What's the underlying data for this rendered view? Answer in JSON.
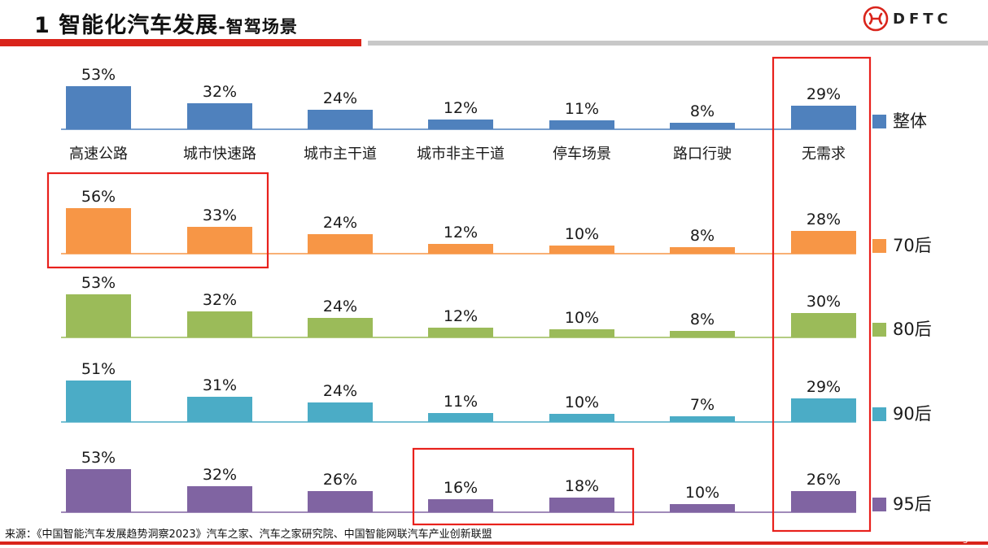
{
  "header": {
    "title_main": "1 智能化汽车发展",
    "title_sub": "-智驾场景",
    "logo_text": "DFTC"
  },
  "footer": {
    "source": "来源：《中国智能汽车发展趋势洞察2023》汽车之家、汽车之家研究院、中国智能网联汽车产业创新联盟",
    "page_number": "3"
  },
  "chart_data": {
    "type": "bar",
    "categories": [
      "高速公路",
      "城市快速路",
      "城市主干道",
      "城市非主干道",
      "停车场景",
      "路口行驶",
      "无需求"
    ],
    "series": [
      {
        "name": "整体",
        "color": "#4f81bd",
        "values": [
          53,
          32,
          24,
          12,
          11,
          8,
          29
        ]
      },
      {
        "name": "70后",
        "color": "#f79646",
        "values": [
          56,
          33,
          24,
          12,
          10,
          8,
          28
        ]
      },
      {
        "name": "80后",
        "color": "#9bbb59",
        "values": [
          53,
          32,
          24,
          12,
          10,
          8,
          30
        ]
      },
      {
        "name": "90后",
        "color": "#4bacc6",
        "values": [
          51,
          31,
          24,
          11,
          10,
          7,
          29
        ]
      },
      {
        "name": "95后",
        "color": "#8064a2",
        "values": [
          53,
          32,
          26,
          16,
          18,
          10,
          26
        ]
      }
    ],
    "value_suffix": "%",
    "legend_placement": "right",
    "ylabel": "",
    "xlabel": ""
  },
  "highlight_color": "#e8211c"
}
